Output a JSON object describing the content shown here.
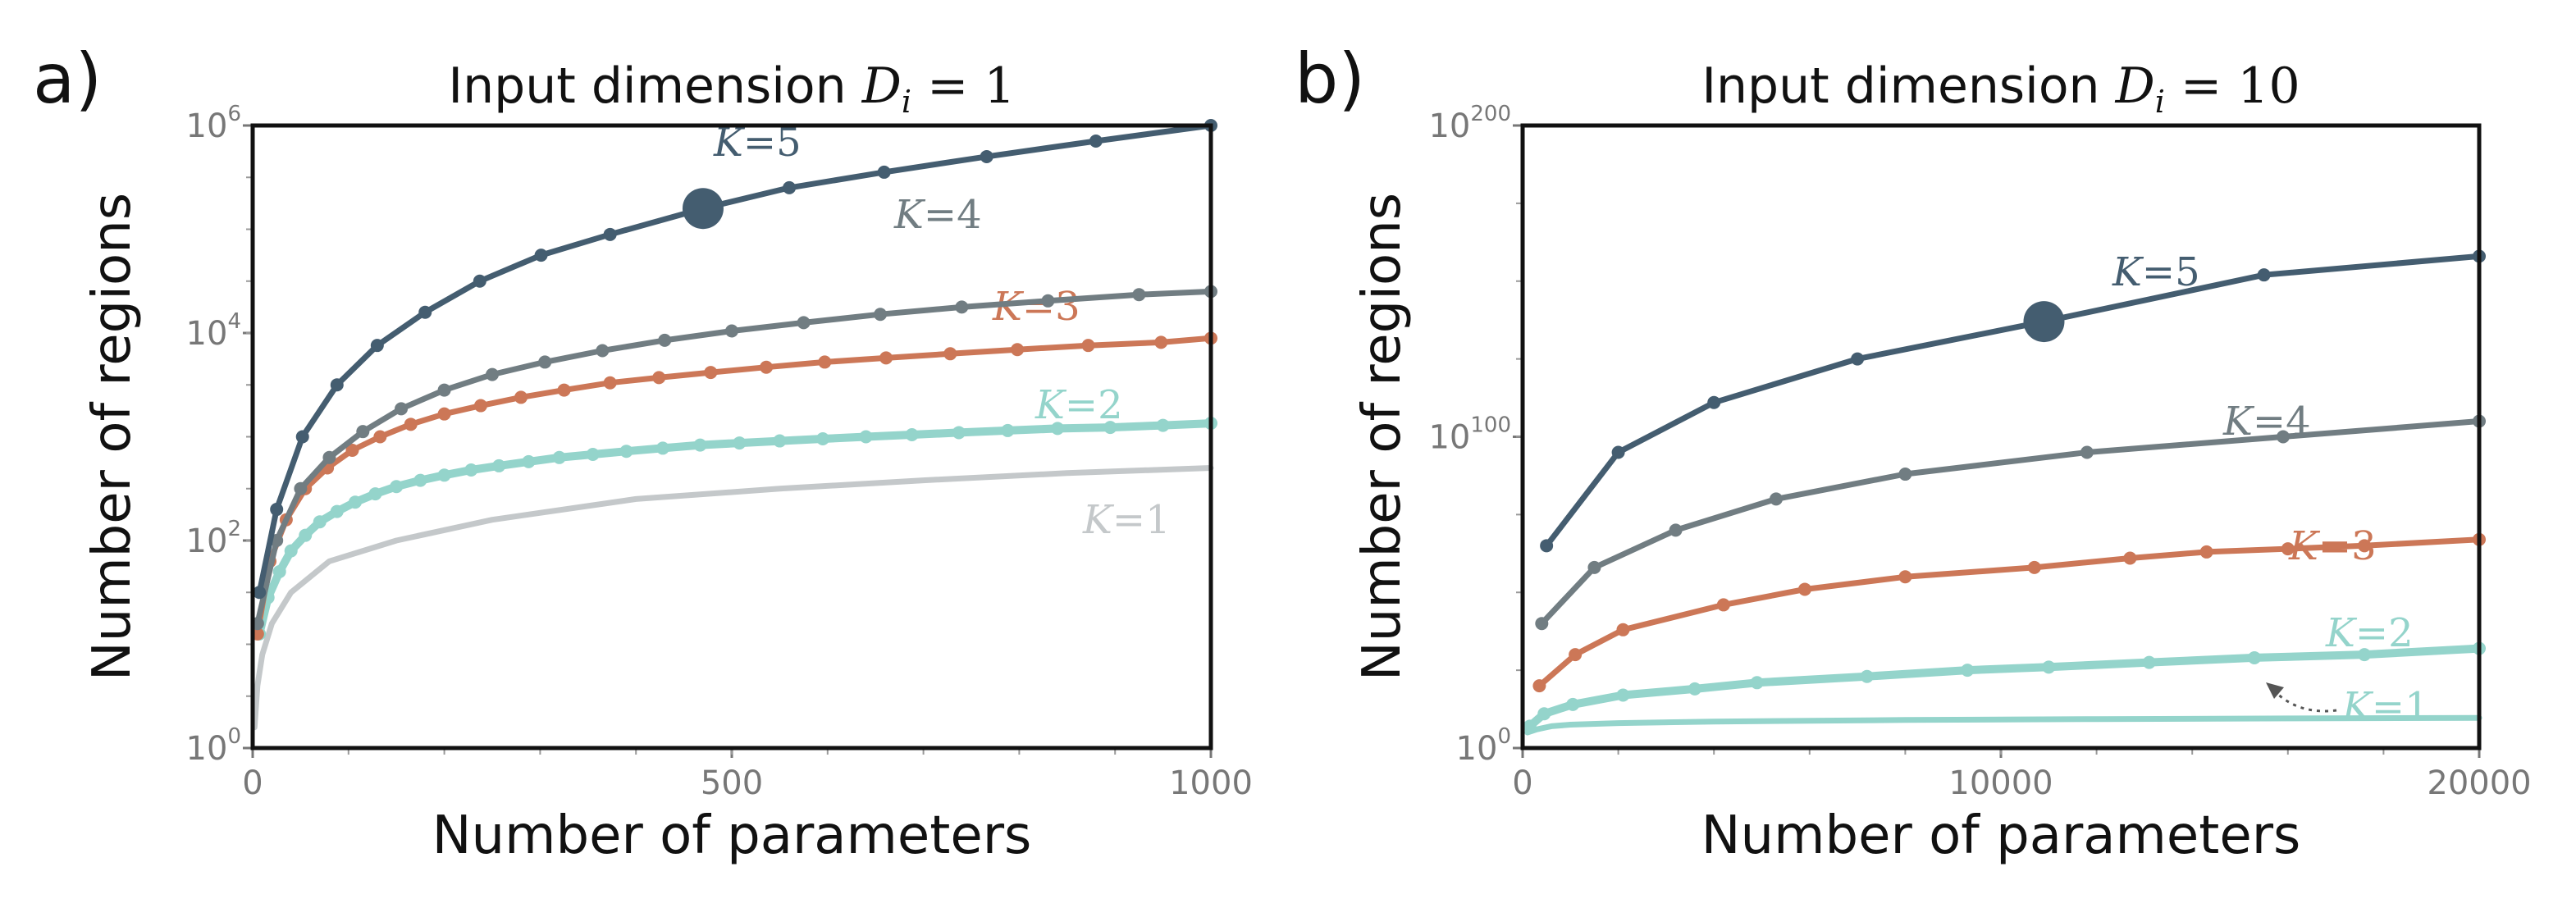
{
  "chart_data": [
    {
      "panel_label": "a)",
      "type": "line",
      "title": "Input dimension D_i = 1",
      "title_text": "Input dimension ",
      "title_math": "D",
      "title_sub": "i",
      "title_eq": " = 1",
      "xlabel": "Number of parameters",
      "ylabel": "Number of regions",
      "xlim": [
        0,
        1000
      ],
      "ylim": [
        0,
        6
      ],
      "y_scale": "log10",
      "x_ticks": [
        "0",
        "500",
        "1000"
      ],
      "y_ticks": [
        {
          "base": "10",
          "exp": "0"
        },
        {
          "base": "10",
          "exp": "2"
        },
        {
          "base": "10",
          "exp": "4"
        },
        {
          "base": "10",
          "exp": "6"
        }
      ],
      "series": [
        {
          "name": "K=1",
          "color": "#c4c8ca",
          "markers": false,
          "x": [
            2,
            5,
            10,
            20,
            40,
            80,
            150,
            250,
            400,
            550,
            700,
            850,
            1000
          ],
          "y": [
            0.2,
            0.6,
            0.9,
            1.2,
            1.5,
            1.8,
            2.0,
            2.2,
            2.4,
            2.5,
            2.58,
            2.65,
            2.7
          ]
        },
        {
          "name": "K=2",
          "color": "#94d4cb",
          "markers": true,
          "x": [
            7,
            16,
            28,
            40,
            55,
            70,
            88,
            107,
            128,
            150,
            175,
            200,
            228,
            257,
            288,
            320,
            355,
            390,
            428,
            467,
            508,
            550,
            595,
            640,
            688,
            737,
            788,
            840,
            895,
            950,
            1000
          ],
          "y": [
            1.1,
            1.45,
            1.7,
            1.9,
            2.05,
            2.18,
            2.28,
            2.37,
            2.45,
            2.52,
            2.58,
            2.63,
            2.68,
            2.72,
            2.76,
            2.8,
            2.83,
            2.86,
            2.89,
            2.92,
            2.94,
            2.96,
            2.98,
            3.0,
            3.02,
            3.04,
            3.06,
            3.08,
            3.09,
            3.11,
            3.13
          ]
        },
        {
          "name": "K=3",
          "color": "#cc7757",
          "markers": true,
          "x": [
            5,
            18,
            35,
            55,
            78,
            104,
            133,
            165,
            200,
            238,
            280,
            325,
            373,
            424,
            478,
            536,
            597,
            661,
            728,
            798,
            872,
            948,
            1000
          ],
          "y": [
            1.1,
            1.8,
            2.2,
            2.5,
            2.7,
            2.87,
            3.0,
            3.12,
            3.22,
            3.3,
            3.38,
            3.45,
            3.52,
            3.57,
            3.62,
            3.67,
            3.72,
            3.76,
            3.8,
            3.84,
            3.88,
            3.91,
            3.95
          ]
        },
        {
          "name": "K=4",
          "color": "#717d82",
          "markers": true,
          "x": [
            5,
            25,
            50,
            80,
            115,
            155,
            200,
            250,
            305,
            365,
            430,
            500,
            575,
            655,
            740,
            830,
            925,
            1000
          ],
          "y": [
            1.2,
            2.0,
            2.5,
            2.8,
            3.05,
            3.27,
            3.45,
            3.6,
            3.72,
            3.83,
            3.93,
            4.02,
            4.1,
            4.18,
            4.25,
            4.31,
            4.37,
            4.4
          ]
        },
        {
          "name": "K=5",
          "color": "#445d70",
          "markers": true,
          "x": [
            7,
            25,
            52,
            88,
            130,
            180,
            237,
            301,
            373,
            470,
            560,
            659,
            766,
            880,
            1000
          ],
          "y": [
            1.5,
            2.3,
            3.0,
            3.5,
            3.88,
            4.2,
            4.5,
            4.75,
            4.95,
            5.2,
            5.4,
            5.55,
            5.7,
            5.85,
            6.0
          ],
          "highlight": {
            "x": 470,
            "y": 5.2
          }
        }
      ]
    },
    {
      "panel_label": "b)",
      "type": "line",
      "title": "Input dimension D_i = 10",
      "title_text": "Input dimension ",
      "title_math": "D",
      "title_sub": "i",
      "title_eq": " = 10",
      "xlabel": "Number of parameters",
      "ylabel": "Number of regions",
      "xlim": [
        0,
        20000
      ],
      "ylim": [
        0,
        200
      ],
      "y_scale": "log10",
      "x_ticks": [
        "0",
        "10000",
        "20000"
      ],
      "y_ticks": [
        {
          "base": "10",
          "exp": "0"
        },
        {
          "base": "10",
          "exp": "100"
        },
        {
          "base": "10",
          "exp": "200"
        }
      ],
      "series": [
        {
          "name": "K=1",
          "color": "#94d4cb",
          "markers": false,
          "x": [
            100,
            300,
            600,
            1000,
            2000,
            4000,
            8000,
            12000,
            16000,
            20000
          ],
          "y": [
            5,
            6,
            7,
            7.5,
            8,
            8.5,
            9,
            9.3,
            9.5,
            9.7
          ]
        },
        {
          "name": "K=2",
          "color": "#94d4cb",
          "markers": true,
          "x": [
            150,
            450,
            1050,
            2100,
            3600,
            4900,
            7200,
            9300,
            11000,
            13100,
            15300,
            17600,
            20000
          ],
          "y": [
            7,
            11,
            14,
            17,
            19,
            21,
            23,
            25,
            26,
            27.5,
            29,
            30,
            32
          ]
        },
        {
          "name": "K=3",
          "color": "#cc7757",
          "markers": true,
          "x": [
            350,
            1100,
            2100,
            4200,
            5900,
            8000,
            10700,
            12700,
            14300,
            16000,
            17600,
            20000
          ],
          "y": [
            20,
            30,
            38,
            46,
            51,
            55,
            58,
            61,
            63,
            64,
            65,
            67
          ]
        },
        {
          "name": "K=4",
          "color": "#717d82",
          "markers": true,
          "x": [
            400,
            1500,
            3200,
            5300,
            8000,
            11800,
            15900,
            20000
          ],
          "y": [
            40,
            58,
            70,
            80,
            88,
            95,
            100,
            105
          ]
        },
        {
          "name": "K=5",
          "color": "#445d70",
          "markers": true,
          "x": [
            500,
            2000,
            4000,
            7000,
            10900,
            15500,
            20000
          ],
          "y": [
            65,
            95,
            111,
            125,
            137,
            152,
            158
          ],
          "highlight": {
            "x": 10900,
            "y": 137
          }
        }
      ]
    }
  ]
}
